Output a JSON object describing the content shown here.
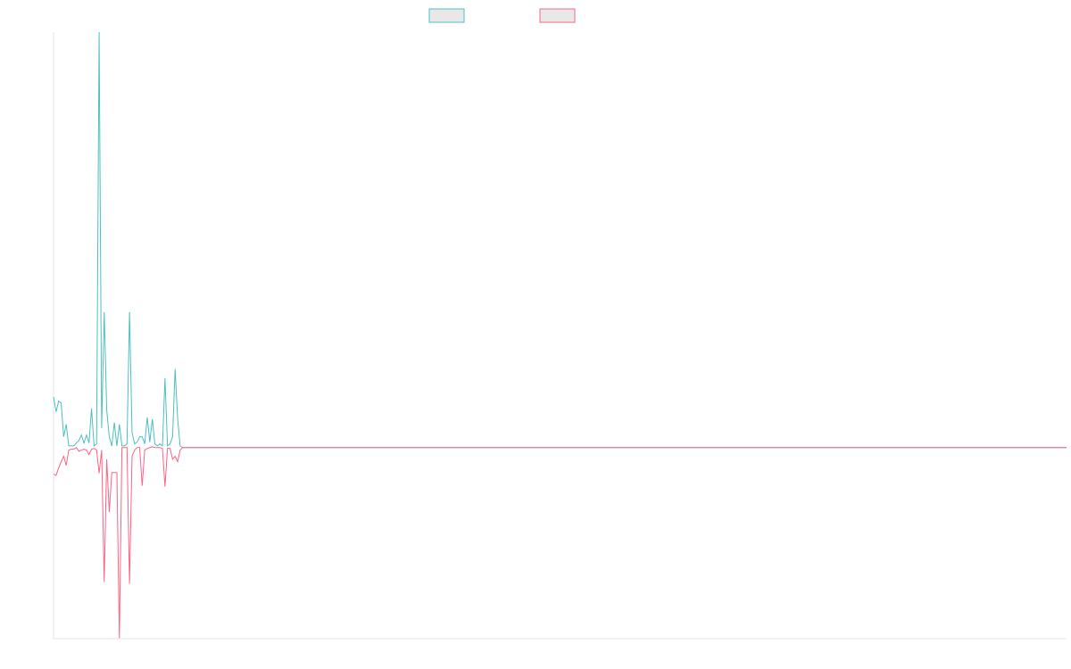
{
  "chart_data": {
    "type": "line",
    "x": [
      0,
      1,
      2,
      3,
      4,
      5,
      6,
      7,
      8,
      9,
      10,
      11,
      12,
      13,
      14,
      15,
      16,
      17,
      18,
      19,
      20,
      21,
      22,
      23,
      24,
      25,
      26,
      27,
      28,
      29,
      30,
      31,
      32,
      33,
      34,
      35,
      36,
      37,
      38,
      39,
      40,
      41,
      42,
      43,
      44,
      45,
      46,
      47,
      48,
      49,
      50,
      51,
      400
    ],
    "series": [
      {
        "color": "#4bc0c0",
        "values": [
          0.122,
          0.086,
          0.112,
          0.107,
          0.026,
          0.056,
          0.004,
          0.004,
          0.004,
          0.011,
          0.017,
          0.03,
          0.011,
          0.03,
          0.011,
          0.094,
          0.004,
          0.009,
          1.0,
          0.047,
          0.326,
          0.09,
          0.026,
          0.004,
          0.06,
          0.004,
          0.056,
          0.004,
          0.004,
          0.009,
          0.326,
          0.036,
          0.009,
          0.013,
          0.026,
          0.026,
          0.009,
          0.073,
          0.013,
          0.069,
          0.009,
          0.004,
          0.009,
          0.004,
          0.167,
          0.004,
          0.009,
          0.026,
          0.189,
          0.069,
          0.004,
          0,
          0
        ]
      },
      {
        "color": "#ff6384",
        "values": [
          -0.064,
          -0.067,
          -0.049,
          -0.034,
          -0.021,
          -0.043,
          -0.006,
          -0.004,
          -0.004,
          0,
          -0.009,
          -0.006,
          -0.004,
          -0.006,
          -0.017,
          -0.004,
          -0.002,
          -0.006,
          -0.062,
          -0.006,
          -0.324,
          -0.028,
          -0.155,
          -0.06,
          -0.06,
          -0.06,
          -0.459,
          0,
          0,
          0,
          -0.328,
          -0.021,
          -0.006,
          0,
          0,
          -0.092,
          -0.006,
          -0.002,
          0,
          0.002,
          0,
          0,
          0,
          -0.002,
          -0.094,
          -0.002,
          -0.002,
          -0.028,
          -0.021,
          -0.034,
          -0.006,
          0,
          0
        ]
      }
    ],
    "xlim": [
      0,
      400
    ],
    "ylim": [
      -0.46,
      1.0
    ],
    "legend": "top"
  }
}
